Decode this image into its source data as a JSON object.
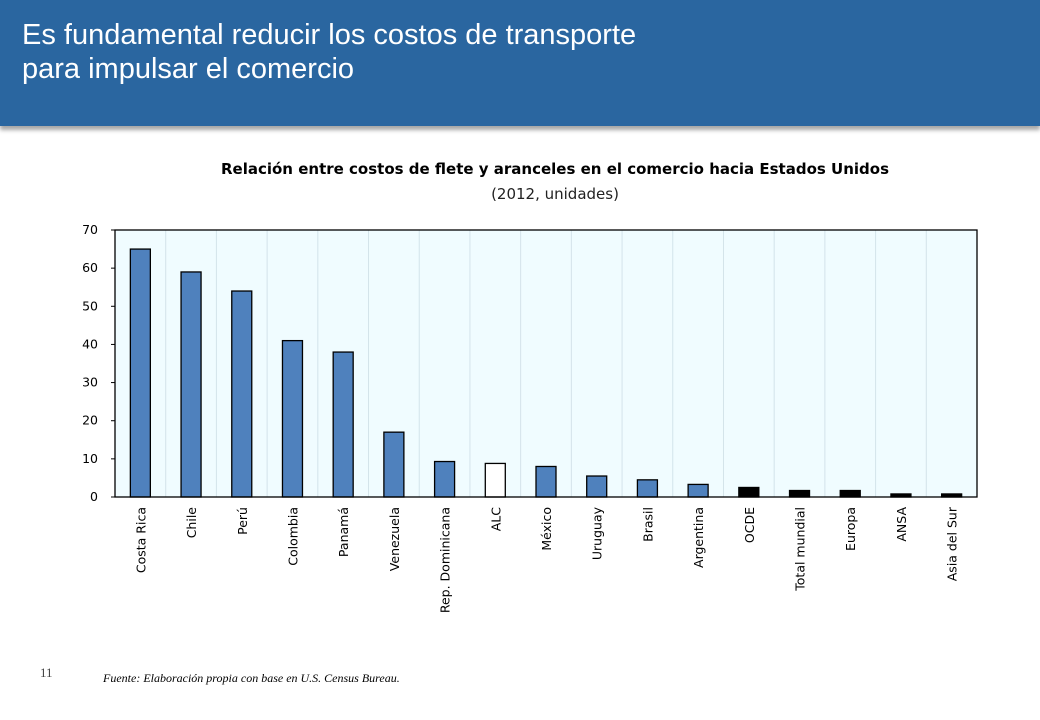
{
  "header": {
    "title_line1": "Es fundamental reducir los costos de transporte",
    "title_line2": "para impulsar el comercio"
  },
  "chart_data": {
    "type": "bar",
    "title": "Relación entre costos de flete y aranceles en el comercio hacia Estados Unidos",
    "subtitle": "(2012, unidades)",
    "xlabel": "",
    "ylabel": "",
    "ylim": [
      0,
      70
    ],
    "yticks": [
      0,
      10,
      20,
      30,
      40,
      50,
      60,
      70
    ],
    "grid": true,
    "categories": [
      "Costa Rica",
      "Chile",
      "Perú",
      "Colombia",
      "Panamá",
      "Venezuela",
      "Rep. Dominicana",
      "ALC",
      "México",
      "Uruguay",
      "Brasil",
      "Argentina",
      "OCDE",
      "Total mundial",
      "Europa",
      "ANSA",
      "Asia del Sur"
    ],
    "values": [
      65,
      59,
      54,
      41,
      38,
      17,
      9.3,
      8.8,
      8.0,
      5.5,
      4.5,
      3.3,
      2.5,
      1.7,
      1.7,
      0.8,
      0.8
    ],
    "bar_colors": [
      "#4f81bd",
      "#4f81bd",
      "#4f81bd",
      "#4f81bd",
      "#4f81bd",
      "#4f81bd",
      "#4f81bd",
      "#ffffff",
      "#4f81bd",
      "#4f81bd",
      "#4f81bd",
      "#4f81bd",
      "#000000",
      "#000000",
      "#000000",
      "#000000",
      "#000000"
    ],
    "plot_background": "#f0fcff"
  },
  "footer": {
    "page_number": "11",
    "source": "Fuente: Elaboración propia con base en U.S. Census Bureau."
  }
}
